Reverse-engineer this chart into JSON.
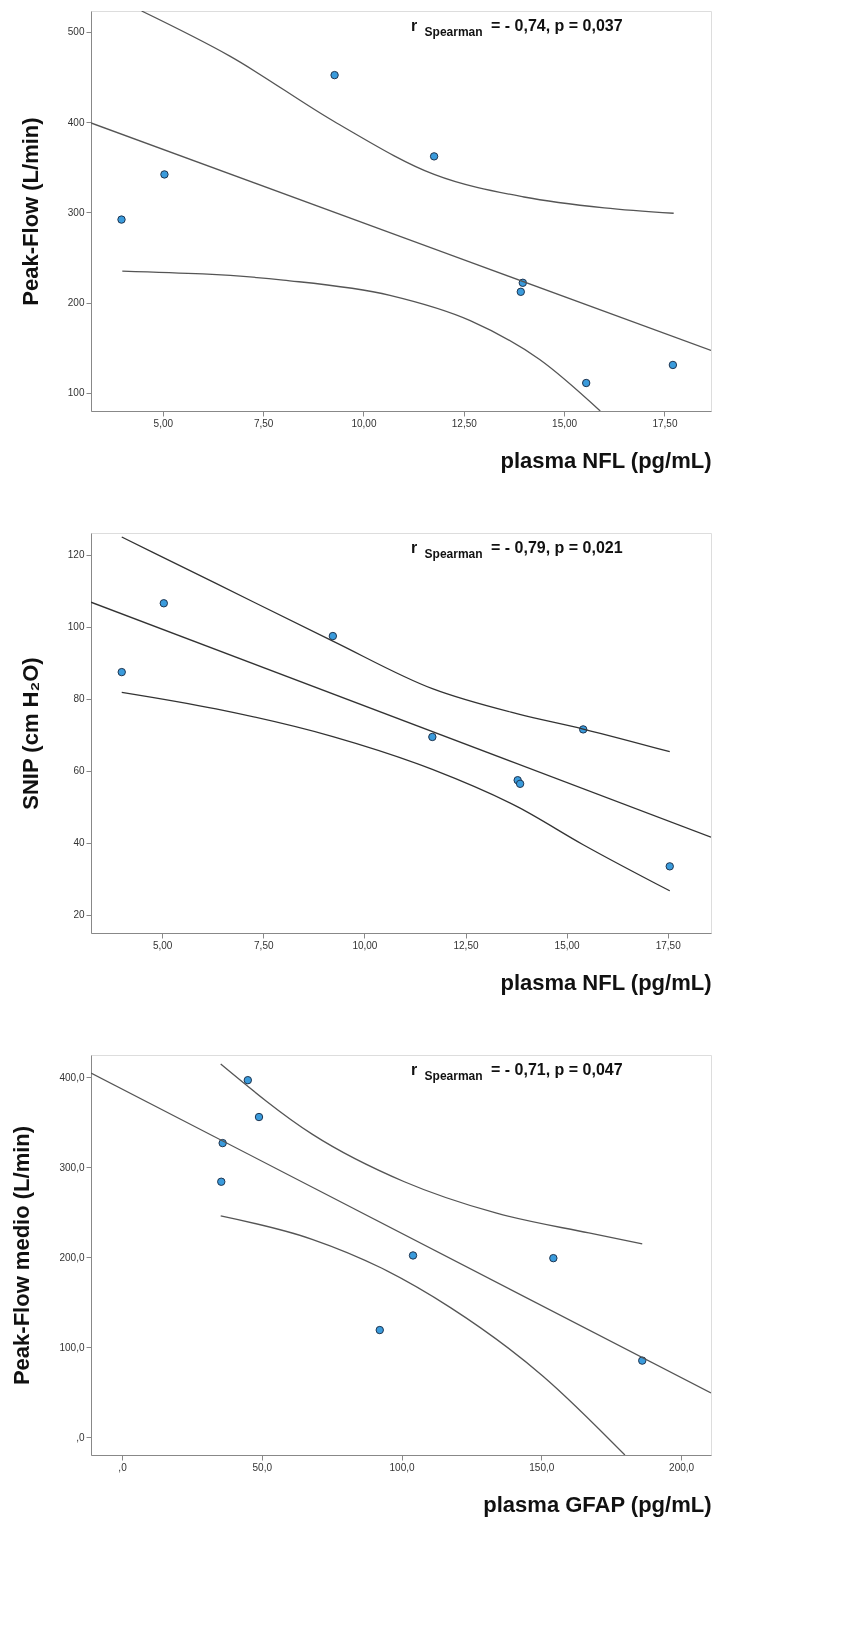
{
  "chart_data": [
    {
      "type": "scatter",
      "xlabel": "plasma NFL (pg/mL)",
      "ylabel": "Peak-Flow  (L/min)",
      "annotations": [
        "r$_{Spearman}$ = - 0,74, p = 0,037"
      ],
      "xlim": [
        3.21,
        18.66
      ],
      "ylim": [
        80,
        523
      ],
      "xticks": [
        {
          "value": 5,
          "label": "5,00"
        },
        {
          "value": 7.5,
          "label": "7,50"
        },
        {
          "value": 10,
          "label": "10,00"
        },
        {
          "value": 12.5,
          "label": "12,50"
        },
        {
          "value": 15,
          "label": "15,00"
        },
        {
          "value": 17.5,
          "label": "17,50"
        }
      ],
      "yticks": [
        100,
        200,
        300,
        400,
        500
      ],
      "grid": false,
      "series": [
        {
          "color": "#3a9bdc",
          "marker": "circle",
          "x": [
            3.97,
            5.04,
            9.28,
            11.76,
            13.97,
            13.92,
            15.55,
            17.71
          ],
          "values": [
            292,
            342,
            452,
            362,
            222,
            212,
            111,
            131
          ]
        },
        {
          "type": "line",
          "marker": "none",
          "line_style": "solid",
          "color": "#555555",
          "x": [
            3.21,
            18.66
          ],
          "values": [
            399,
            147
          ]
        },
        {
          "type": "line",
          "marker": "none",
          "line_style": "solid",
          "color": "#555555",
          "x": [
            4.47,
            6.67,
            9.33,
            11.76,
            14,
            16,
            17.73
          ],
          "values": [
            523,
            473,
            399,
            342,
            317,
            305,
            299
          ]
        },
        {
          "type": "line",
          "marker": "none",
          "line_style": "solid",
          "color": "#555555",
          "x": [
            3.99,
            8,
            10.66,
            12.66,
            14.39,
            15.9
          ],
          "values": [
            235,
            225,
            208,
            180,
            137,
            80
          ]
        }
      ]
    },
    {
      "type": "scatter",
      "xlabel": "plasma NFL (pg/mL)",
      "ylabel": "SNIP (cm H₂O)",
      "annotations": [
        "r$_{Spearman}$ = - 0,79, p = 0,021"
      ],
      "xlim": [
        3.24,
        18.57
      ],
      "ylim": [
        15,
        126
      ],
      "xticks": [
        {
          "value": 5,
          "label": "5,00"
        },
        {
          "value": 7.5,
          "label": "7,50"
        },
        {
          "value": 10,
          "label": "10,00"
        },
        {
          "value": 12.5,
          "label": "12,50"
        },
        {
          "value": 15,
          "label": "15,00"
        },
        {
          "value": 17.5,
          "label": "17,50"
        }
      ],
      "yticks": [
        20,
        40,
        60,
        80,
        100,
        120
      ],
      "grid": false,
      "series": [
        {
          "color": "#3a9bdc",
          "marker": "circle",
          "x": [
            4.0,
            5.04,
            9.22,
            11.68,
            13.79,
            13.85,
            15.41,
            17.55
          ],
          "values": [
            87.4,
            106.5,
            97.4,
            69.4,
            57.4,
            56.4,
            71.5,
            33.5
          ]
        },
        {
          "type": "line",
          "marker": "none",
          "line_style": "solid",
          "color": "#333333",
          "x": [
            3.24,
            18.57
          ],
          "values": [
            106.8,
            41.6
          ]
        },
        {
          "type": "line",
          "marker": "none",
          "line_style": "solid",
          "color": "#333333",
          "x": [
            4,
            6.33,
            9.22,
            11.68,
            13.79,
            15.41,
            17.55
          ],
          "values": [
            124.9,
            112,
            96,
            82.8,
            75.8,
            71.6,
            65.3
          ]
        },
        {
          "type": "line",
          "marker": "none",
          "line_style": "solid",
          "color": "#333333",
          "x": [
            4,
            6.33,
            9.22,
            11.68,
            13.79,
            15.41,
            17.55
          ],
          "values": [
            81.8,
            77.2,
            69.5,
            60.4,
            50,
            39.5,
            26.7
          ]
        }
      ]
    },
    {
      "type": "scatter",
      "xlabel": "plasma GFAP (pg/mL)",
      "ylabel": "Peak-Flow medio (L/min)",
      "annotations": [
        "r$_{Spearman}$ = - 0,71, p = 0,047"
      ],
      "xlim": [
        -11.1,
        210.7
      ],
      "ylim": [
        -20,
        425
      ],
      "xticks": [
        {
          "value": 0,
          "label": ",0"
        },
        {
          "value": 50,
          "label": "50,0"
        },
        {
          "value": 100,
          "label": "100,0"
        },
        {
          "value": 150,
          "label": "150,0"
        },
        {
          "value": 200,
          "label": "200,0"
        }
      ],
      "yticks": [
        {
          "value": 0,
          "label": ",0"
        },
        {
          "value": 100,
          "label": "100,0"
        },
        {
          "value": 200,
          "label": "200,0"
        },
        {
          "value": 300,
          "label": "300,0"
        },
        {
          "value": 400,
          "label": "400,0"
        }
      ],
      "grid": false,
      "series": [
        {
          "color": "#3a9bdc",
          "marker": "circle",
          "x": [
            45.0,
            49.0,
            36.0,
            35.5,
            104.1,
            92.2,
            154.3,
            186.1
          ],
          "values": [
            397,
            356,
            327,
            284,
            202,
            119,
            199,
            85
          ]
        },
        {
          "type": "line",
          "marker": "none",
          "line_style": "solid",
          "color": "#555555",
          "x": [
            -11.1,
            210.7
          ],
          "values": [
            405,
            49
          ]
        },
        {
          "type": "line",
          "marker": "none",
          "line_style": "solid",
          "color": "#555555",
          "x": [
            35.3,
            68,
            101,
            134,
            167,
            186.1
          ],
          "values": [
            415,
            337,
            284,
            249,
            227,
            215
          ]
        },
        {
          "type": "line",
          "marker": "none",
          "line_style": "solid",
          "color": "#555555",
          "x": [
            35.3,
            68,
            92.8,
            117.5,
            150.5,
            179.9
          ],
          "values": [
            246,
            220,
            188,
            144,
            68,
            -20
          ]
        }
      ]
    }
  ]
}
